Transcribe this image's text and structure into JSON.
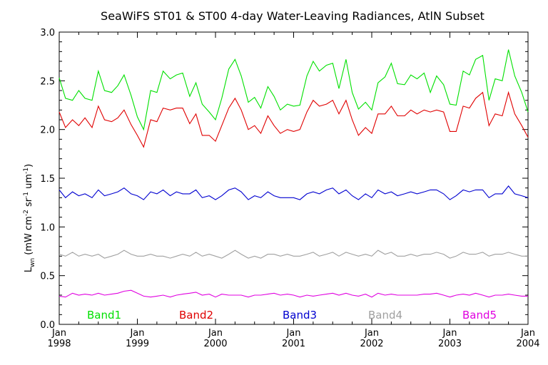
{
  "chart_data": {
    "type": "line",
    "title": "SeaWiFS ST01 & ST00 4-day Water-Leaving Radiances, AtlN Subset",
    "ylabel_main": "L",
    "ylabel_sub": "wn",
    "ylabel_rest_1": " (mW cm",
    "ylabel_sup_1": "-2",
    "ylabel_rest_2": " sr",
    "ylabel_sup_2": "-1",
    "ylabel_rest_3": " um",
    "ylabel_sup_3": "-1",
    "ylabel_rest_4": ")",
    "xlabel": "",
    "ylim": [
      0.0,
      3.0
    ],
    "xlim": [
      1998.0,
      2004.0
    ],
    "yticks": [
      "0.0",
      "0.5",
      "1.0",
      "1.5",
      "2.0",
      "2.5",
      "3.0"
    ],
    "xticks": [
      {
        "month": "Jan",
        "year": "1998"
      },
      {
        "month": "Jan",
        "year": "1999"
      },
      {
        "month": "Jan",
        "year": "2000"
      },
      {
        "month": "Jan",
        "year": "2001"
      },
      {
        "month": "Jan",
        "year": "2002"
      },
      {
        "month": "Jan",
        "year": "2003"
      },
      {
        "month": "Jan",
        "year": "2004"
      }
    ],
    "legend_position": "bottom inside plot",
    "grid": false,
    "x": [
      1998.0,
      1998.08,
      1998.17,
      1998.25,
      1998.33,
      1998.42,
      1998.5,
      1998.58,
      1998.67,
      1998.75,
      1998.83,
      1998.92,
      1999.0,
      1999.08,
      1999.17,
      1999.25,
      1999.33,
      1999.42,
      1999.5,
      1999.58,
      1999.67,
      1999.75,
      1999.83,
      1999.92,
      2000.0,
      2000.08,
      2000.17,
      2000.25,
      2000.33,
      2000.42,
      2000.5,
      2000.58,
      2000.67,
      2000.75,
      2000.83,
      2000.92,
      2001.0,
      2001.08,
      2001.17,
      2001.25,
      2001.33,
      2001.42,
      2001.5,
      2001.58,
      2001.67,
      2001.75,
      2001.83,
      2001.92,
      2002.0,
      2002.08,
      2002.17,
      2002.25,
      2002.33,
      2002.42,
      2002.5,
      2002.58,
      2002.67,
      2002.75,
      2002.83,
      2002.92,
      2003.0,
      2003.08,
      2003.17,
      2003.25,
      2003.33,
      2003.42,
      2003.5,
      2003.58,
      2003.67,
      2003.75,
      2003.83,
      2003.92,
      2004.0
    ],
    "series": [
      {
        "name": "Band1",
        "color": "#00e000",
        "values": [
          2.53,
          2.32,
          2.3,
          2.4,
          2.32,
          2.3,
          2.6,
          2.4,
          2.38,
          2.45,
          2.56,
          2.35,
          2.13,
          2.0,
          2.4,
          2.38,
          2.6,
          2.52,
          2.56,
          2.58,
          2.34,
          2.48,
          2.26,
          2.18,
          2.1,
          2.32,
          2.62,
          2.72,
          2.55,
          2.28,
          2.33,
          2.22,
          2.44,
          2.34,
          2.2,
          2.26,
          2.24,
          2.25,
          2.55,
          2.7,
          2.6,
          2.66,
          2.68,
          2.42,
          2.72,
          2.38,
          2.21,
          2.28,
          2.2,
          2.48,
          2.54,
          2.68,
          2.47,
          2.46,
          2.56,
          2.52,
          2.58,
          2.38,
          2.55,
          2.46,
          2.26,
          2.25,
          2.6,
          2.56,
          2.72,
          2.76,
          2.3,
          2.52,
          2.5,
          2.82,
          2.55,
          2.38,
          2.18
        ]
      },
      {
        "name": "Band2",
        "color": "#e00000",
        "values": [
          2.18,
          2.02,
          2.1,
          2.04,
          2.12,
          2.02,
          2.24,
          2.1,
          2.08,
          2.12,
          2.2,
          2.05,
          1.94,
          1.82,
          2.1,
          2.08,
          2.22,
          2.2,
          2.22,
          2.22,
          2.06,
          2.16,
          1.94,
          1.94,
          1.88,
          2.04,
          2.22,
          2.32,
          2.2,
          2.0,
          2.04,
          1.96,
          2.14,
          2.04,
          1.96,
          2.0,
          1.98,
          2.0,
          2.18,
          2.3,
          2.24,
          2.26,
          2.3,
          2.16,
          2.3,
          2.1,
          1.94,
          2.02,
          1.96,
          2.16,
          2.16,
          2.24,
          2.14,
          2.14,
          2.2,
          2.16,
          2.2,
          2.18,
          2.2,
          2.18,
          1.98,
          1.98,
          2.24,
          2.22,
          2.32,
          2.38,
          2.04,
          2.16,
          2.14,
          2.38,
          2.16,
          2.04,
          1.92
        ]
      },
      {
        "name": "Band3",
        "color": "#0000d0",
        "values": [
          1.38,
          1.3,
          1.36,
          1.32,
          1.34,
          1.3,
          1.38,
          1.32,
          1.34,
          1.36,
          1.4,
          1.34,
          1.32,
          1.28,
          1.36,
          1.34,
          1.38,
          1.32,
          1.36,
          1.34,
          1.34,
          1.38,
          1.3,
          1.32,
          1.28,
          1.32,
          1.38,
          1.4,
          1.36,
          1.28,
          1.32,
          1.3,
          1.36,
          1.32,
          1.3,
          1.3,
          1.3,
          1.28,
          1.34,
          1.36,
          1.34,
          1.38,
          1.4,
          1.34,
          1.38,
          1.32,
          1.28,
          1.34,
          1.3,
          1.38,
          1.34,
          1.36,
          1.32,
          1.34,
          1.36,
          1.34,
          1.36,
          1.38,
          1.38,
          1.34,
          1.28,
          1.32,
          1.38,
          1.36,
          1.38,
          1.38,
          1.3,
          1.34,
          1.34,
          1.42,
          1.34,
          1.32,
          1.3
        ]
      },
      {
        "name": "Band4",
        "color": "#a0a0a0",
        "values": [
          0.72,
          0.7,
          0.74,
          0.7,
          0.72,
          0.7,
          0.72,
          0.68,
          0.7,
          0.72,
          0.76,
          0.72,
          0.7,
          0.7,
          0.72,
          0.7,
          0.7,
          0.68,
          0.7,
          0.72,
          0.7,
          0.74,
          0.7,
          0.72,
          0.7,
          0.68,
          0.72,
          0.76,
          0.72,
          0.68,
          0.7,
          0.68,
          0.72,
          0.72,
          0.7,
          0.72,
          0.7,
          0.7,
          0.72,
          0.74,
          0.7,
          0.72,
          0.74,
          0.7,
          0.74,
          0.72,
          0.7,
          0.72,
          0.7,
          0.76,
          0.72,
          0.74,
          0.7,
          0.7,
          0.72,
          0.7,
          0.72,
          0.72,
          0.74,
          0.72,
          0.68,
          0.7,
          0.74,
          0.72,
          0.72,
          0.74,
          0.7,
          0.72,
          0.72,
          0.74,
          0.72,
          0.7,
          0.7
        ]
      },
      {
        "name": "Band5",
        "color": "#e000e0",
        "values": [
          0.29,
          0.28,
          0.32,
          0.3,
          0.31,
          0.3,
          0.32,
          0.3,
          0.31,
          0.32,
          0.34,
          0.35,
          0.32,
          0.29,
          0.28,
          0.29,
          0.3,
          0.28,
          0.3,
          0.31,
          0.32,
          0.33,
          0.3,
          0.31,
          0.28,
          0.31,
          0.3,
          0.3,
          0.3,
          0.28,
          0.3,
          0.3,
          0.31,
          0.32,
          0.3,
          0.31,
          0.3,
          0.28,
          0.3,
          0.29,
          0.3,
          0.31,
          0.32,
          0.3,
          0.32,
          0.3,
          0.29,
          0.31,
          0.28,
          0.32,
          0.3,
          0.31,
          0.3,
          0.3,
          0.3,
          0.3,
          0.31,
          0.31,
          0.32,
          0.3,
          0.28,
          0.3,
          0.31,
          0.3,
          0.32,
          0.3,
          0.28,
          0.3,
          0.3,
          0.31,
          0.3,
          0.29,
          0.29
        ]
      }
    ]
  }
}
